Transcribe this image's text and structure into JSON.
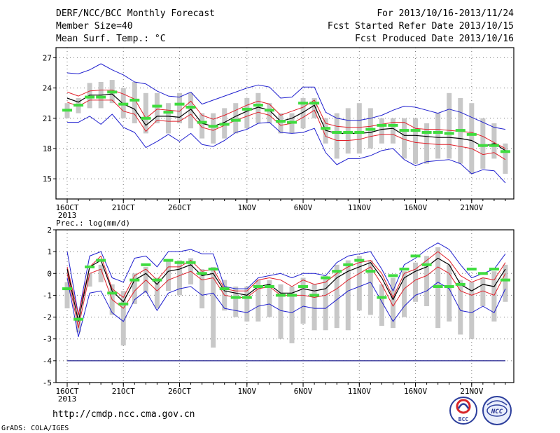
{
  "header": {
    "title": "DERF/NCC/BCC Monthly Forecast",
    "member_size": "Member Size=40",
    "variable": "Mean Surf. Temp.: °C",
    "period": "For 2013/10/16-2013/11/24",
    "started": "Fcst Started Refer Date 2013/10/15",
    "produced": "Fcst Produced Date 2013/10/16"
  },
  "footer": {
    "url": "http://cmdp.ncc.cma.gov.cn",
    "credit": "GrADS: COLA/IGES",
    "logo_bcc_text": "BCC",
    "logo_ncc_text": "NCC"
  },
  "colors": {
    "ens_bar": "#c8c8c8",
    "median_green": "#3fdc3f",
    "mean_line": "#000000",
    "inner_band": "#e0202a",
    "outer_band": "#1f1fcf",
    "ref_line": "#1a1a8c"
  },
  "x_axis": {
    "year_label": "2013",
    "ticks": [
      {
        "day": 0,
        "label": "16OCT"
      },
      {
        "day": 5,
        "label": "21OCT"
      },
      {
        "day": 10,
        "label": "26OCT"
      },
      {
        "day": 16,
        "label": "1NOV"
      },
      {
        "day": 21,
        "label": "6NOV"
      },
      {
        "day": 26,
        "label": "11NOV"
      },
      {
        "day": 31,
        "label": "16NOV"
      },
      {
        "day": 36,
        "label": "21NOV"
      }
    ],
    "n_days": 40
  },
  "chart_data": [
    {
      "type": "line",
      "panel": "temperature",
      "ylabel": "",
      "ylim": [
        13,
        28
      ],
      "yticks": [
        15,
        18,
        21,
        24,
        27
      ],
      "grid": true,
      "series": [
        {
          "role": "outer_upper",
          "values": [
            25.5,
            25.4,
            25.8,
            26.4,
            25.8,
            25.3,
            24.6,
            24.4,
            23.7,
            23.2,
            23.1,
            23.6,
            22.4,
            22.8,
            23.2,
            23.6,
            24.0,
            24.3,
            24.1,
            23.0,
            23.1,
            24.1,
            24.1,
            21.6,
            21.0,
            20.8,
            20.8,
            21.0,
            21.3,
            21.8,
            22.2,
            22.1,
            21.8,
            21.5,
            21.9,
            21.6,
            21.1,
            20.6,
            20.1,
            19.9
          ]
        },
        {
          "role": "inner_upper",
          "values": [
            23.6,
            23.2,
            23.7,
            23.8,
            23.8,
            23.4,
            22.9,
            21.0,
            21.9,
            21.8,
            21.7,
            22.7,
            21.3,
            20.9,
            21.3,
            21.8,
            22.3,
            22.7,
            22.4,
            21.3,
            21.7,
            22.1,
            22.8,
            20.5,
            20.2,
            20.1,
            20.1,
            20.2,
            20.4,
            20.6,
            20.6,
            20.0,
            19.9,
            19.9,
            19.8,
            19.7,
            19.6,
            19.2,
            18.6,
            18.0
          ]
        },
        {
          "role": "mean",
          "values": [
            23.0,
            22.6,
            23.3,
            23.3,
            23.4,
            22.4,
            21.9,
            20.3,
            21.2,
            21.2,
            21.1,
            21.9,
            20.5,
            20.2,
            20.6,
            21.2,
            21.7,
            22.1,
            21.8,
            20.7,
            21.0,
            21.6,
            22.3,
            19.8,
            19.5,
            19.5,
            19.5,
            19.6,
            19.9,
            20.0,
            19.3,
            19.3,
            19.2,
            19.1,
            19.1,
            19.0,
            18.8,
            18.2,
            18.5,
            17.8
          ]
        },
        {
          "role": "inner_lower",
          "values": [
            22.6,
            22.2,
            22.8,
            22.8,
            22.8,
            21.7,
            21.4,
            19.7,
            20.8,
            20.7,
            20.7,
            21.4,
            20.1,
            19.8,
            20.3,
            20.8,
            21.2,
            21.6,
            21.3,
            20.3,
            20.5,
            21.1,
            21.8,
            19.2,
            18.8,
            18.8,
            18.9,
            19.2,
            19.4,
            19.4,
            18.9,
            18.6,
            18.5,
            18.4,
            18.4,
            18.2,
            18.0,
            17.4,
            17.6,
            16.9
          ]
        },
        {
          "role": "outer_lower",
          "values": [
            20.6,
            20.6,
            21.2,
            20.4,
            21.4,
            20.1,
            19.6,
            18.1,
            18.7,
            19.4,
            18.7,
            19.5,
            18.4,
            18.2,
            18.8,
            19.6,
            19.9,
            20.5,
            20.6,
            19.6,
            19.5,
            19.6,
            20.0,
            17.6,
            16.4,
            17.0,
            17.0,
            17.3,
            17.8,
            18.0,
            16.9,
            16.3,
            16.7,
            16.8,
            16.9,
            16.5,
            15.5,
            15.9,
            15.8,
            14.6
          ]
        },
        {
          "role": "median",
          "values": [
            21.8,
            22.3,
            23.1,
            23.1,
            23.6,
            22.4,
            22.8,
            21.0,
            22.2,
            21.6,
            22.4,
            22.1,
            20.6,
            20.2,
            20.4,
            20.8,
            21.9,
            22.3,
            21.8,
            20.7,
            20.6,
            22.5,
            22.5,
            20.0,
            19.6,
            19.6,
            19.6,
            19.9,
            20.3,
            20.3,
            19.8,
            19.8,
            19.6,
            19.6,
            19.5,
            19.8,
            19.4,
            18.3,
            18.3,
            17.7
          ]
        },
        {
          "role": "bar_top",
          "values": [
            22.5,
            23.0,
            24.5,
            24.6,
            24.8,
            24.0,
            24.6,
            23.5,
            23.5,
            22.5,
            23.5,
            23.5,
            21.5,
            21.5,
            22.0,
            22.5,
            23.0,
            23.5,
            22.5,
            21.5,
            21.5,
            23.0,
            23.0,
            21.0,
            21.5,
            22.0,
            22.5,
            22.0,
            21.0,
            21.0,
            21.0,
            21.0,
            20.5,
            21.5,
            23.5,
            23.0,
            22.5,
            21.0,
            20.5,
            18.5
          ]
        },
        {
          "role": "bar_bottom",
          "values": [
            21.0,
            21.5,
            22.0,
            22.0,
            22.5,
            21.0,
            20.5,
            19.5,
            20.5,
            19.5,
            20.5,
            20.0,
            19.0,
            18.5,
            19.0,
            19.5,
            20.0,
            20.5,
            20.5,
            19.5,
            19.5,
            20.0,
            21.0,
            18.5,
            17.0,
            17.5,
            17.5,
            18.0,
            18.5,
            18.5,
            17.0,
            16.5,
            16.5,
            17.0,
            17.0,
            16.5,
            15.5,
            16.0,
            17.0,
            15.5
          ]
        }
      ]
    },
    {
      "type": "line",
      "panel": "precipitation",
      "ylabel": "Prec.: log(mm/d)",
      "ylim": [
        -5,
        2
      ],
      "yticks": [
        -5,
        -4,
        -3,
        -2,
        -1,
        0,
        1,
        2
      ],
      "grid": true,
      "reference_line": -4,
      "series": [
        {
          "role": "outer_upper",
          "values": [
            1.0,
            -1.9,
            0.8,
            1.0,
            -0.2,
            -0.4,
            0.7,
            0.8,
            0.3,
            1.0,
            1.0,
            1.1,
            0.9,
            0.9,
            -0.6,
            -0.7,
            -0.7,
            -0.2,
            -0.1,
            0.0,
            -0.2,
            0.0,
            0.0,
            -0.1,
            0.5,
            0.8,
            0.9,
            1.0,
            0.2,
            -0.8,
            0.4,
            0.7,
            1.1,
            1.4,
            1.1,
            0.4,
            -0.2,
            0.0,
            0.2,
            0.9
          ]
        },
        {
          "role": "inner_upper",
          "values": [
            0.3,
            -1.9,
            0.3,
            0.8,
            -0.7,
            -1.1,
            -0.1,
            0.2,
            -0.3,
            0.3,
            0.3,
            0.6,
            0.1,
            0.2,
            -0.7,
            -0.8,
            -0.8,
            -0.3,
            -0.2,
            -0.3,
            -0.6,
            -0.3,
            -0.5,
            -0.4,
            0.0,
            0.3,
            0.5,
            0.6,
            0.0,
            -1.1,
            0.0,
            0.2,
            0.6,
            1.0,
            0.6,
            -0.1,
            -0.4,
            -0.2,
            -0.3,
            0.5
          ]
        },
        {
          "role": "mean",
          "values": [
            0.2,
            -2.2,
            0.3,
            0.6,
            -0.8,
            -1.3,
            -0.3,
            0.0,
            -0.5,
            0.1,
            0.2,
            0.4,
            -0.1,
            0.0,
            -0.8,
            -0.9,
            -1.0,
            -0.6,
            -0.5,
            -0.9,
            -0.9,
            -0.7,
            -0.8,
            -0.7,
            -0.2,
            0.1,
            0.3,
            0.5,
            -0.2,
            -1.2,
            -0.2,
            0.1,
            0.3,
            0.7,
            0.4,
            -0.5,
            -0.8,
            -0.5,
            -0.6,
            0.2
          ]
        },
        {
          "role": "inner_lower",
          "values": [
            0.0,
            -2.5,
            0.0,
            0.2,
            -1.2,
            -1.6,
            -0.8,
            -0.3,
            -0.8,
            -0.3,
            -0.1,
            0.1,
            -0.3,
            -0.2,
            -1.0,
            -1.1,
            -1.1,
            -0.7,
            -0.6,
            -1.0,
            -1.0,
            -1.0,
            -1.1,
            -1.0,
            -0.7,
            -0.3,
            0.0,
            0.3,
            -0.5,
            -1.5,
            -0.7,
            -0.3,
            -0.1,
            0.3,
            0.0,
            -0.8,
            -1.0,
            -0.8,
            -1.0,
            0.0
          ]
        },
        {
          "role": "outer_lower",
          "values": [
            -0.2,
            -2.9,
            -0.9,
            -0.8,
            -1.8,
            -2.2,
            -1.2,
            -0.8,
            -1.7,
            -0.9,
            -0.7,
            -0.6,
            -1.0,
            -0.9,
            -1.6,
            -1.7,
            -1.8,
            -1.5,
            -1.4,
            -1.7,
            -1.8,
            -1.5,
            -1.6,
            -1.6,
            -1.2,
            -0.8,
            -0.6,
            -0.4,
            -1.3,
            -2.2,
            -1.5,
            -1.0,
            -0.8,
            -0.4,
            -0.7,
            -1.7,
            -1.8,
            -1.5,
            -1.8,
            -0.7
          ]
        },
        {
          "role": "median",
          "values": [
            -0.7,
            -2.1,
            0.3,
            0.6,
            -0.9,
            -1.4,
            -0.3,
            0.4,
            -0.3,
            0.6,
            0.5,
            0.5,
            0.0,
            0.2,
            -0.7,
            -1.1,
            -1.1,
            -0.6,
            -0.6,
            -1.0,
            -1.0,
            -0.6,
            -1.0,
            -0.2,
            0.1,
            0.4,
            0.6,
            0.1,
            -1.1,
            -0.1,
            0.2,
            0.8,
            0.4,
            -0.6,
            -0.6,
            -0.5,
            0.2,
            0.0,
            0.2,
            -0.3
          ]
        },
        {
          "role": "bar_top",
          "values": [
            -0.4,
            -1.8,
            0.0,
            0.4,
            -0.5,
            -0.8,
            0.0,
            0.3,
            -0.2,
            0.6,
            0.6,
            0.7,
            0.2,
            0.3,
            -0.3,
            -0.6,
            -0.6,
            -0.3,
            -0.3,
            -0.5,
            -0.6,
            -0.2,
            -0.5,
            -0.1,
            0.4,
            0.6,
            0.8,
            0.6,
            -0.5,
            -0.2,
            0.1,
            0.5,
            0.8,
            1.2,
            0.4,
            -0.3,
            -0.4,
            -0.2,
            0.1,
            0.4
          ]
        },
        {
          "role": "bar_bottom",
          "values": [
            -1.6,
            -2.7,
            -0.6,
            -0.4,
            -1.9,
            -3.3,
            -1.4,
            -0.9,
            -1.6,
            -0.8,
            -1.0,
            -0.5,
            -1.6,
            -3.4,
            -1.7,
            -2.0,
            -2.2,
            -2.2,
            -2.0,
            -3.0,
            -3.2,
            -2.3,
            -2.6,
            -2.6,
            -2.5,
            -2.6,
            -1.7,
            -1.9,
            -2.4,
            -2.5,
            -2.0,
            -1.3,
            -1.5,
            -2.5,
            -2.2,
            -2.8,
            -3.0,
            -1.5,
            -2.2,
            -1.3
          ]
        }
      ]
    }
  ]
}
